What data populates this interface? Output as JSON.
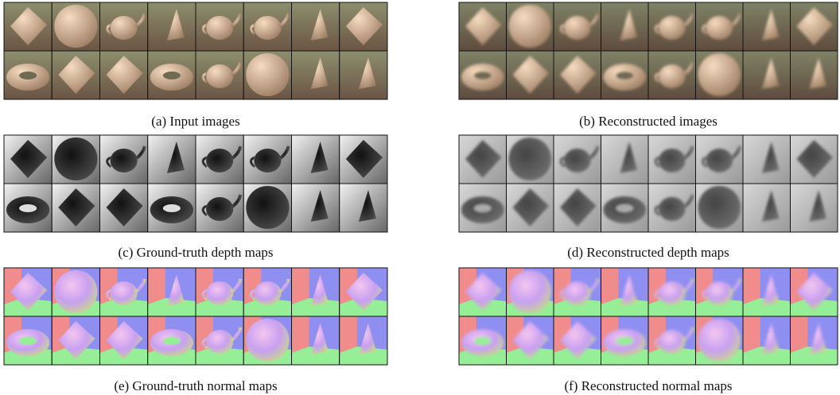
{
  "panels": [
    {
      "caption": "(a) Input images"
    },
    {
      "caption": "(b) Reconstructed images"
    },
    {
      "caption": "(c) Ground-truth depth maps"
    },
    {
      "caption": "(d) Reconstructed depth maps"
    },
    {
      "caption": "(e) Ground-truth normal maps"
    },
    {
      "caption": "(f) Reconstructed normal maps"
    }
  ]
}
